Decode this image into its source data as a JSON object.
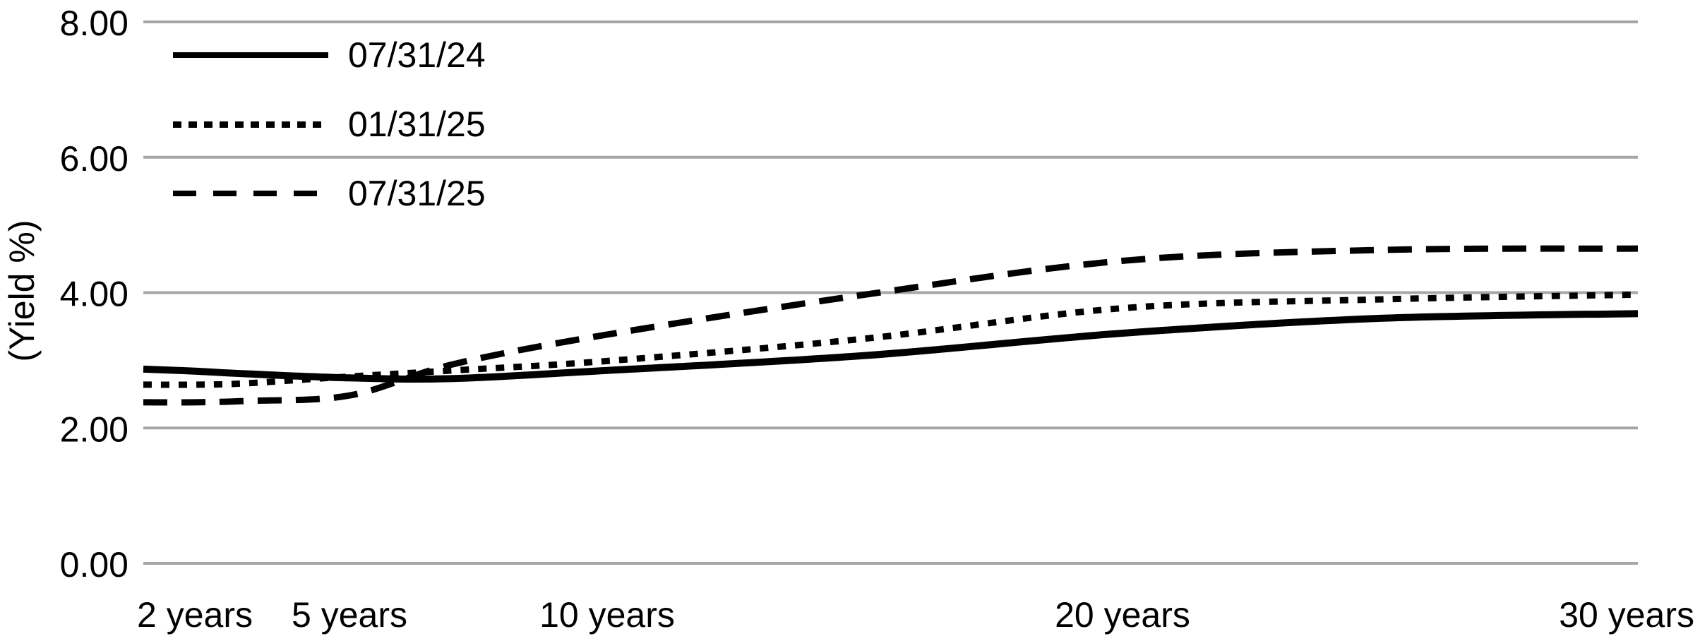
{
  "chart_data": {
    "type": "line",
    "title": "",
    "xlabel": "",
    "ylabel": "(Yield %)",
    "x_unit": "years",
    "x_years": [
      1,
      2,
      3,
      5,
      7,
      10,
      15,
      20,
      25,
      30
    ],
    "series": [
      {
        "name": "07/31/24",
        "line_style": "solid",
        "values": [
          2.87,
          2.84,
          2.8,
          2.74,
          2.73,
          2.85,
          3.07,
          3.4,
          3.62,
          3.69
        ]
      },
      {
        "name": "01/31/25",
        "line_style": "dotted",
        "values": [
          2.64,
          2.64,
          2.66,
          2.76,
          2.85,
          2.99,
          3.32,
          3.77,
          3.9,
          3.97
        ]
      },
      {
        "name": "07/31/25",
        "line_style": "dashed",
        "values": [
          2.38,
          2.38,
          2.4,
          2.48,
          2.94,
          3.38,
          3.97,
          4.47,
          4.63,
          4.65
        ]
      }
    ],
    "y_ticks": [
      {
        "value": 0,
        "label": "0.00"
      },
      {
        "value": 2,
        "label": "2.00"
      },
      {
        "value": 4,
        "label": "4.00"
      },
      {
        "value": 6,
        "label": "6.00"
      },
      {
        "value": 8,
        "label": "8.00"
      }
    ],
    "x_ticks": [
      {
        "year": 2,
        "label": "2 years",
        "align": "center"
      },
      {
        "year": 5,
        "label": "5 years",
        "align": "center"
      },
      {
        "year": 10,
        "label": "10 years",
        "align": "center"
      },
      {
        "year": 20,
        "label": "20 years",
        "align": "center"
      },
      {
        "year": 30,
        "label": "30 years",
        "align": "end"
      }
    ],
    "ylim": [
      0,
      8
    ],
    "xlim_years": [
      1,
      30
    ],
    "grid": "horizontal",
    "legend_position": "top-left",
    "smooth_lines": true,
    "colors": {
      "series": "#000000",
      "grid": "#a6a6a6",
      "text": "#000000",
      "background": "#ffffff"
    }
  }
}
